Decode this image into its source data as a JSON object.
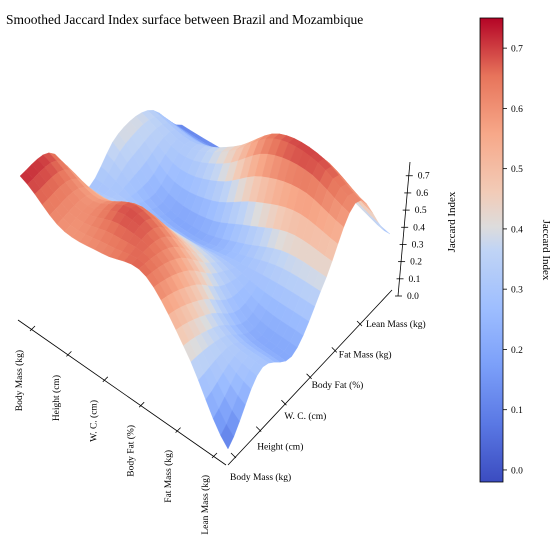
{
  "chart_data": {
    "type": "surface3d",
    "title": "Smoothed Jaccard Index surface between Brazil and Mozambique",
    "xlabel": "",
    "ylabel": "",
    "zlabel": "Jaccard Index",
    "x_categories": [
      "Body Mass (kg)",
      "Height (cm)",
      "W. C. (cm)",
      "Body Fat (%)",
      "Fat Mass (kg)",
      "Lean Mass (kg)"
    ],
    "y_categories": [
      "Body Mass (kg)",
      "Height (cm)",
      "W. C. (cm)",
      "Body Fat (%)",
      "Fat Mass (kg)",
      "Lean Mass (kg)"
    ],
    "z_ticks": [
      "0.0",
      "0.1",
      "0.2",
      "0.3",
      "0.4",
      "0.5",
      "0.6",
      "0.7"
    ],
    "zlim": [
      0,
      0.78
    ],
    "colorbar": {
      "label": "Jaccard Index",
      "colormap": "coolwarm",
      "range": [
        -0.02,
        0.75
      ],
      "ticks": [
        "0.0",
        "0.1",
        "0.2",
        "0.3",
        "0.4",
        "0.5",
        "0.6",
        "0.7"
      ]
    },
    "approximate_surface_values": [
      [
        0.08,
        0.3,
        0.2,
        0.4,
        0.62,
        0.28
      ],
      [
        0.42,
        0.35,
        0.22,
        0.38,
        0.7,
        0.32
      ],
      [
        0.66,
        0.58,
        0.38,
        0.28,
        0.66,
        0.25
      ],
      [
        0.62,
        0.68,
        0.4,
        0.2,
        0.45,
        0.15
      ],
      [
        0.6,
        0.58,
        0.36,
        0.22,
        0.32,
        0.12
      ],
      [
        0.72,
        0.66,
        0.3,
        0.4,
        0.35,
        0.1
      ]
    ],
    "grid": false
  }
}
